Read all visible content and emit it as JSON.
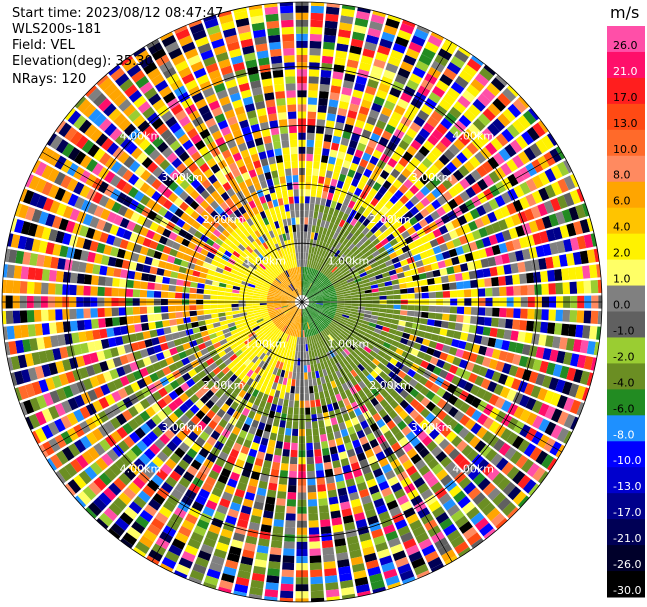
{
  "info": {
    "start_time": "Start time: 2023/08/12 08:47:47",
    "instrument": "WLS200s-181",
    "field": "Field: VEL",
    "elevation": "Elevation(deg): 35.30",
    "nrays": "NRays: 120"
  },
  "chart_data": {
    "type": "heatmap",
    "projection": "polar-ppi",
    "n_rays": 120,
    "range_rings": [
      1.0,
      2.0,
      3.0,
      4.0
    ],
    "range_label_text": [
      "1.00km",
      "2.00km",
      "3.00km",
      "4.00km"
    ],
    "max_range_km": 5.1,
    "colorbar": {
      "unit": "m/s",
      "bins": [
        {
          "label": "26.0",
          "color": "#ff4fa8"
        },
        {
          "label": "21.0",
          "color": "#ff0f6a"
        },
        {
          "label": "17.0",
          "color": "#ff1e1e"
        },
        {
          "label": "13.0",
          "color": "#ff4a14"
        },
        {
          "label": "10.0",
          "color": "#ff6a2a"
        },
        {
          "label": "8.0",
          "color": "#ff8a60"
        },
        {
          "label": "6.0",
          "color": "#ffa500"
        },
        {
          "label": "4.0",
          "color": "#ffc400"
        },
        {
          "label": "2.0",
          "color": "#fff200"
        },
        {
          "label": "1.0",
          "color": "#ffff66"
        },
        {
          "label": "0.0",
          "color": "#808080"
        },
        {
          "label": "-1.0",
          "color": "#606060"
        },
        {
          "label": "-2.0",
          "color": "#9acd32"
        },
        {
          "label": "-4.0",
          "color": "#6b8e23"
        },
        {
          "label": "-6.0",
          "color": "#228b22"
        },
        {
          "label": "-8.0",
          "color": "#1e90ff"
        },
        {
          "label": "-10.0",
          "color": "#0000ff"
        },
        {
          "label": "-13.0",
          "color": "#0000cd"
        },
        {
          "label": "-17.0",
          "color": "#00008b"
        },
        {
          "label": "-21.0",
          "color": "#000055"
        },
        {
          "label": "-26.0",
          "color": "#00002a"
        },
        {
          "label": "-30.0",
          "color": "#000000"
        }
      ]
    },
    "pattern": {
      "inner_west_m_s": 2.0,
      "inner_east_m_s": -4.0,
      "near_center_west_m_s": 6.0,
      "near_center_east_m_s": -6.0,
      "south_far_m_s": -4.0,
      "north_far_m_s": 2.0,
      "outer_noise": "mixed all bins"
    }
  }
}
